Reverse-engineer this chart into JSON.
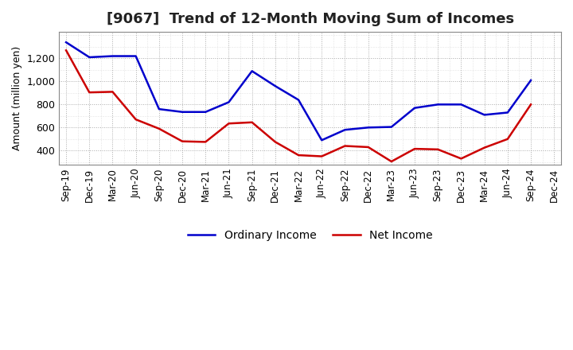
{
  "title": "[9067]  Trend of 12-Month Moving Sum of Incomes",
  "ylabel": "Amount (million yen)",
  "x_labels": [
    "Sep-19",
    "Dec-19",
    "Mar-20",
    "Jun-20",
    "Sep-20",
    "Dec-20",
    "Mar-21",
    "Jun-21",
    "Sep-21",
    "Dec-21",
    "Mar-22",
    "Jun-22",
    "Sep-22",
    "Dec-22",
    "Mar-23",
    "Jun-23",
    "Sep-23",
    "Dec-23",
    "Mar-24",
    "Jun-24",
    "Sep-24",
    "Dec-24"
  ],
  "ordinary_income": [
    1340,
    1210,
    1220,
    1220,
    760,
    735,
    735,
    820,
    1090,
    960,
    840,
    490,
    580,
    600,
    605,
    770,
    800,
    800,
    710,
    730,
    1010,
    null
  ],
  "net_income": [
    1270,
    905,
    910,
    670,
    590,
    480,
    475,
    635,
    645,
    475,
    360,
    350,
    440,
    430,
    305,
    415,
    410,
    330,
    425,
    500,
    800,
    null
  ],
  "ordinary_color": "#0000cc",
  "net_color": "#cc0000",
  "ylim_min": 280,
  "ylim_max": 1430,
  "yticks": [
    400,
    600,
    800,
    1000,
    1200
  ],
  "background_color": "#ffffff",
  "plot_bg_color": "#ffffff",
  "grid_color": "#aaaaaa",
  "line_width": 1.8,
  "title_fontsize": 13,
  "axis_fontsize": 9,
  "legend_fontsize": 10,
  "title_color": "#222222"
}
